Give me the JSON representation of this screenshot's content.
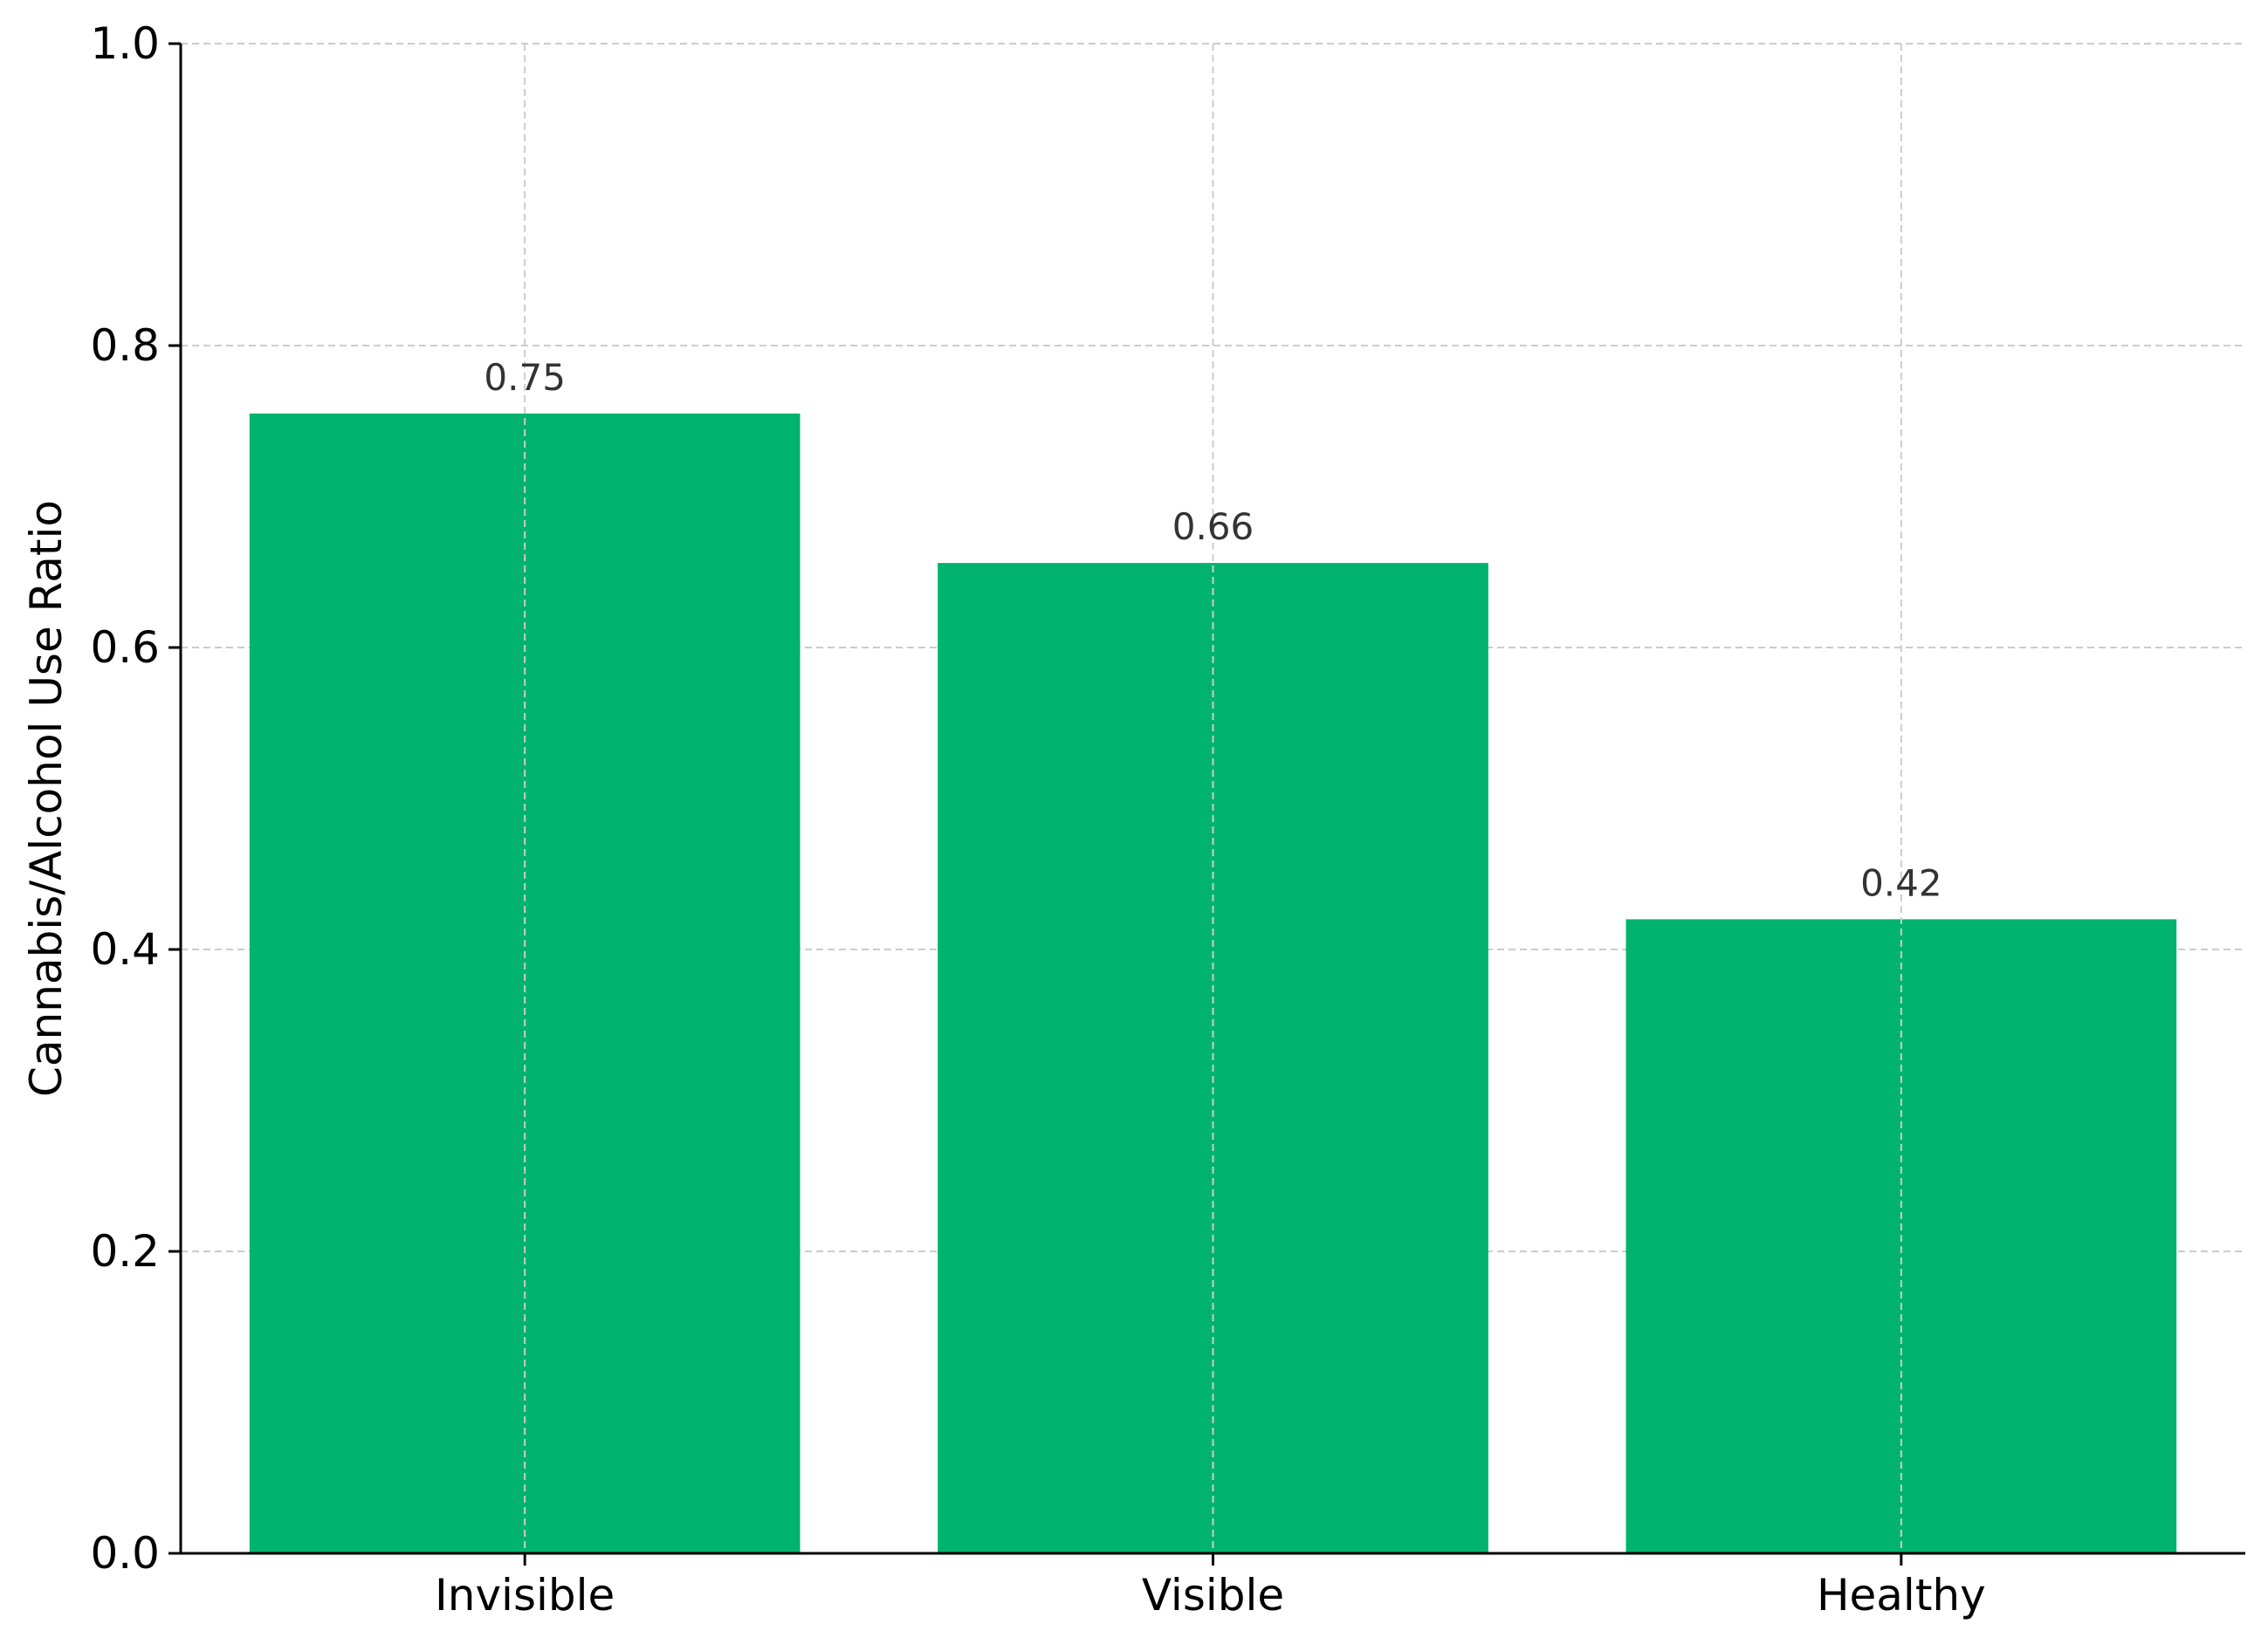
{
  "chart_data": {
    "type": "bar",
    "categories": [
      "Invisible",
      "Visible",
      "Healthy"
    ],
    "values": [
      0.755,
      0.656,
      0.42
    ],
    "data_labels": [
      "0.75",
      "0.66",
      "0.42"
    ],
    "title": "",
    "xlabel": "",
    "ylabel": "Cannabis/Alcohol Use Ratio",
    "ylim": [
      0,
      1.0
    ],
    "yticks": [
      "0.0",
      "0.2",
      "0.4",
      "0.6",
      "0.8",
      "1.0"
    ],
    "grid": true,
    "bar_color": "#00b36e"
  }
}
